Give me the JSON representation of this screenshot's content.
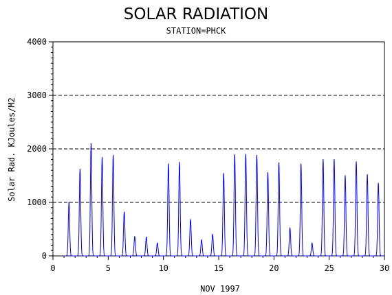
{
  "chart_data": {
    "type": "line",
    "title": "SOLAR RADIATION",
    "subtitle": "STATION=PHCK",
    "xlabel": "NOV 1997",
    "ylabel": "Solar Rad. KJoules/M2",
    "xlim": [
      0,
      30
    ],
    "ylim": [
      0,
      4000
    ],
    "x_ticks": [
      0,
      5,
      10,
      15,
      20,
      25,
      30
    ],
    "y_ticks": [
      0,
      1000,
      2000,
      3000,
      4000
    ],
    "grid": "dashed horizontal at y ticks",
    "series_color": "#0000ff",
    "daily_peaks": [
      {
        "x": 1.45,
        "y": 1000
      },
      {
        "x": 2.45,
        "y": 1620
      },
      {
        "x": 3.45,
        "y": 2100
      },
      {
        "x": 4.45,
        "y": 1840
      },
      {
        "x": 5.45,
        "y": 1880
      },
      {
        "x": 6.45,
        "y": 820
      },
      {
        "x": 7.4,
        "y": 360
      },
      {
        "x": 8.45,
        "y": 350
      },
      {
        "x": 9.45,
        "y": 240
      },
      {
        "x": 10.45,
        "y": 1720
      },
      {
        "x": 11.45,
        "y": 1750
      },
      {
        "x": 12.45,
        "y": 680
      },
      {
        "x": 13.45,
        "y": 300
      },
      {
        "x": 14.45,
        "y": 400
      },
      {
        "x": 15.45,
        "y": 1540
      },
      {
        "x": 16.45,
        "y": 1890
      },
      {
        "x": 17.45,
        "y": 1900
      },
      {
        "x": 18.45,
        "y": 1880
      },
      {
        "x": 19.45,
        "y": 1560
      },
      {
        "x": 20.45,
        "y": 1740
      },
      {
        "x": 21.45,
        "y": 520
      },
      {
        "x": 22.45,
        "y": 1720
      },
      {
        "x": 23.45,
        "y": 240
      },
      {
        "x": 24.45,
        "y": 1800
      },
      {
        "x": 25.45,
        "y": 1800
      },
      {
        "x": 26.45,
        "y": 1500
      },
      {
        "x": 27.45,
        "y": 1760
      },
      {
        "x": 28.45,
        "y": 1520
      },
      {
        "x": 29.45,
        "y": 1360
      }
    ]
  }
}
